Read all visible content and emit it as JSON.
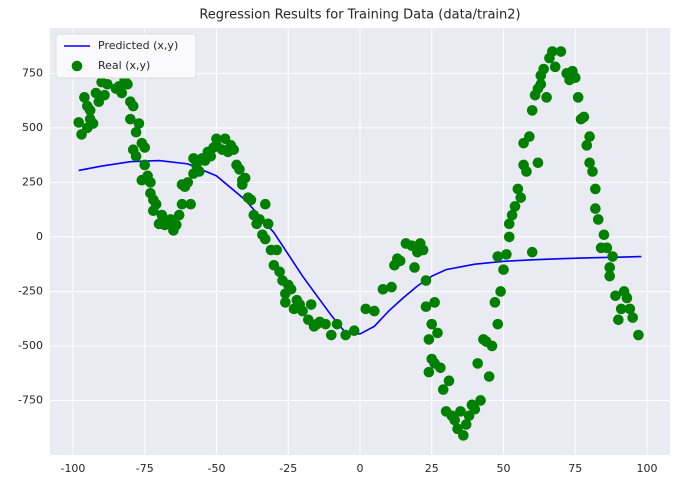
{
  "chart_data": {
    "type": "line",
    "title": "Regression Results for Training Data (data/train2)",
    "xlim": [
      -108,
      108
    ],
    "ylim": [
      -1000,
      958
    ],
    "xticks": [
      -100,
      -75,
      -50,
      -25,
      0,
      25,
      50,
      75,
      100
    ],
    "yticks": [
      -750,
      -500,
      -250,
      0,
      250,
      500,
      750
    ],
    "grid": true,
    "background": "#eaeaf2",
    "legend_position": "upper left",
    "series": [
      {
        "name": "Predicted (x,y)",
        "type": "line",
        "color": "#0000ff",
        "x": [
          -98,
          -90,
          -80,
          -70,
          -60,
          -50,
          -40,
          -30,
          -20,
          -10,
          -5,
          0,
          5,
          10,
          15,
          20,
          25,
          30,
          40,
          50,
          60,
          70,
          80,
          90,
          98
        ],
        "values": [
          305,
          325,
          345,
          350,
          335,
          280,
          170,
          20,
          -180,
          -360,
          -440,
          -445,
          -410,
          -340,
          -280,
          -225,
          -180,
          -150,
          -125,
          -112,
          -105,
          -100,
          -96,
          -93,
          -90
        ]
      },
      {
        "name": "Real (x,y)",
        "type": "scatter",
        "color": "#008000",
        "x": [
          -98,
          -97,
          -96,
          -95,
          -94,
          -95,
          -94,
          -93,
          -92,
          -91,
          -90,
          -89,
          -88,
          -87,
          -86,
          -85,
          -84,
          -83,
          -82,
          -81,
          -80,
          -80,
          -79,
          -78,
          -79,
          -78,
          -77,
          -76,
          -76,
          -75,
          -74,
          -75,
          -73,
          -73,
          -72,
          -72,
          -71,
          -70,
          -69,
          -68,
          -67,
          -66,
          -65,
          -64,
          -63,
          -62,
          -62,
          -61,
          -60,
          -59,
          -58,
          -58,
          -57,
          -56,
          -55,
          -54,
          -53,
          -52,
          -51,
          -50,
          -50,
          -48,
          -47,
          -46,
          -45,
          -44,
          -43,
          -42,
          -41,
          -41,
          -40,
          -39,
          -38,
          -37,
          -36,
          -35,
          -34,
          -33,
          -33,
          -32,
          -31,
          -30,
          -29,
          -28,
          -27,
          -26,
          -26,
          -25,
          -24,
          -23,
          -22,
          -21,
          -20,
          -18,
          -17,
          -16,
          -15,
          -14,
          -12,
          -10,
          -8,
          -5,
          -2,
          2,
          5,
          8,
          11,
          12,
          13,
          14,
          16,
          18,
          19,
          20,
          21,
          22,
          23,
          23,
          24,
          24,
          25,
          25,
          26,
          26,
          27,
          28,
          29,
          30,
          31,
          32,
          33,
          34,
          35,
          36,
          37,
          38,
          39,
          40,
          41,
          42,
          43,
          44,
          45,
          46,
          47,
          48,
          48,
          49,
          50,
          51,
          52,
          52,
          53,
          54,
          55,
          56,
          57,
          57,
          58,
          59,
          60,
          60,
          61,
          62,
          62,
          63,
          63,
          64,
          65,
          66,
          67,
          68,
          70,
          72,
          73,
          74,
          75,
          76,
          77,
          78,
          79,
          80,
          80,
          81,
          82,
          82,
          83,
          84,
          85,
          86,
          87,
          87,
          88,
          89,
          90,
          91,
          92,
          93,
          94,
          95,
          97
        ],
        "values": [
          525,
          470,
          640,
          600,
          540,
          500,
          580,
          520,
          660,
          620,
          710,
          650,
          700,
          760,
          750,
          680,
          690,
          660,
          720,
          700,
          620,
          540,
          600,
          480,
          400,
          370,
          520,
          430,
          260,
          330,
          280,
          410,
          250,
          200,
          170,
          120,
          150,
          60,
          100,
          55,
          70,
          80,
          30,
          55,
          100,
          150,
          240,
          230,
          250,
          150,
          290,
          360,
          330,
          300,
          360,
          350,
          390,
          370,
          410,
          420,
          450,
          400,
          450,
          390,
          420,
          400,
          330,
          310,
          260,
          240,
          270,
          180,
          170,
          100,
          60,
          80,
          10,
          150,
          -10,
          60,
          -60,
          -130,
          -60,
          -160,
          -200,
          -260,
          -300,
          -220,
          -240,
          -330,
          -290,
          -310,
          -340,
          -380,
          -310,
          -410,
          -400,
          -390,
          -400,
          -450,
          -400,
          -450,
          -430,
          -330,
          -340,
          -240,
          -230,
          -130,
          -100,
          -110,
          -30,
          -40,
          -140,
          -70,
          -30,
          -60,
          -200,
          -320,
          -470,
          -620,
          -560,
          -400,
          -300,
          -580,
          -440,
          -600,
          -700,
          -800,
          -660,
          -820,
          -840,
          -880,
          -800,
          -910,
          -860,
          -820,
          -770,
          -790,
          -580,
          -750,
          -470,
          -480,
          -640,
          -500,
          -300,
          -400,
          -90,
          -250,
          -150,
          -80,
          0,
          60,
          100,
          140,
          220,
          180,
          330,
          430,
          300,
          460,
          580,
          -70,
          650,
          680,
          340,
          740,
          700,
          770,
          640,
          820,
          850,
          780,
          850,
          750,
          720,
          760,
          730,
          640,
          540,
          550,
          420,
          460,
          340,
          300,
          220,
          130,
          80,
          -50,
          10,
          -50,
          -140,
          -180,
          -90,
          -270,
          -380,
          -330,
          -250,
          -280,
          -330,
          -370,
          -450
        ]
      }
    ]
  }
}
